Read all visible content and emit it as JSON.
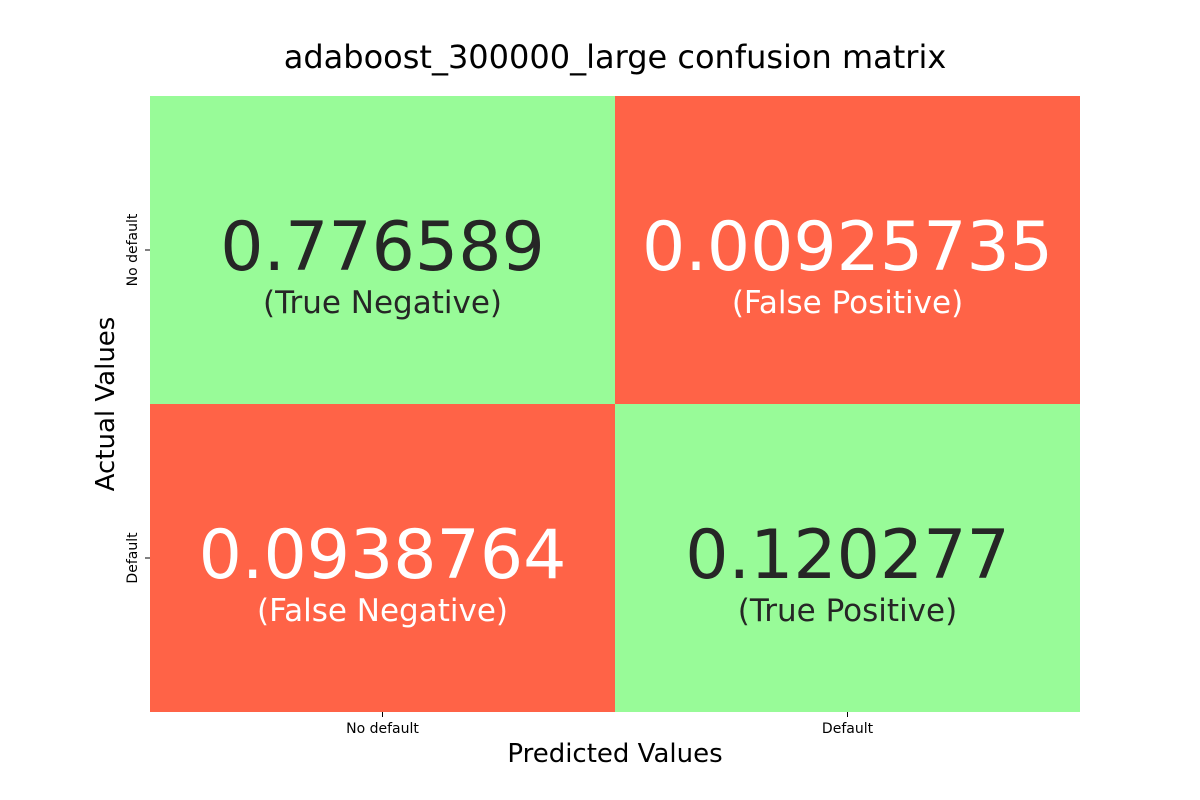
{
  "chart_data": {
    "type": "heatmap",
    "title": "adaboost_300000_large confusion matrix",
    "xlabel": "Predicted Values",
    "ylabel": "Actual Values",
    "x_tick_labels": [
      "No default",
      "Default"
    ],
    "y_tick_labels": [
      "No default",
      "Default"
    ],
    "cells": [
      {
        "row": 0,
        "col": 0,
        "value": "0.776589",
        "label": "(True Negative)",
        "color": "#98fb98",
        "text_color": "#262626"
      },
      {
        "row": 0,
        "col": 1,
        "value": "0.00925735",
        "label": "(False Positive)",
        "color": "#ff6347",
        "text_color": "#ffffff"
      },
      {
        "row": 1,
        "col": 0,
        "value": "0.0938764",
        "label": "(False Negative)",
        "color": "#ff6347",
        "text_color": "#ffffff"
      },
      {
        "row": 1,
        "col": 1,
        "value": "0.120277",
        "label": "(True Positive)",
        "color": "#98fb98",
        "text_color": "#262626"
      }
    ],
    "colorbar": false,
    "grid": false
  }
}
